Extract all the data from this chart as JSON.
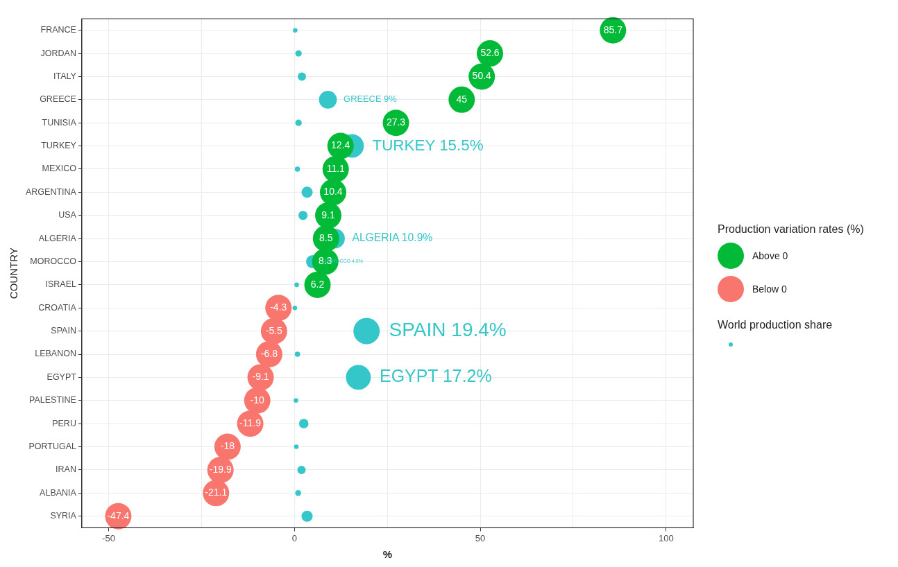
{
  "chart_data": {
    "type": "bubble",
    "orientation": "horizontal",
    "xlabel": "%",
    "ylabel": "COUNTRY",
    "legend_title": "Production variation rates (%)",
    "legend": "right",
    "grid": true,
    "categories": [
      "FRANCE",
      "JORDAN",
      "ITALY",
      "GREECE",
      "TUNISIA",
      "TURKEY",
      "MEXICO",
      "ARGENTINA",
      "USA",
      "ALGERIA",
      "MOROCCO",
      "ISRAEL",
      "CROATIA",
      "SPAIN",
      "LEBANON",
      "EGYPT",
      "PALESTINE",
      "PERU",
      "PORTUGAL",
      "IRAN",
      "ALBANIA",
      "SYRIA"
    ],
    "xlim": [
      -57.2,
      107.3
    ],
    "xticks": [
      -50,
      {
        "value": -25,
        "label": null
      },
      0,
      {
        "value": 25,
        "label": null
      },
      50,
      {
        "value": 75,
        "label": null
      },
      100
    ],
    "series": [
      {
        "name": "Above 0",
        "color": "#00ba38",
        "values": [
          85.7,
          52.6,
          50.4,
          45,
          27.3,
          12.4,
          11.1,
          10.4,
          9.1,
          8.5,
          8.3,
          6.2,
          null,
          null,
          null,
          null,
          null,
          null,
          null,
          null,
          null,
          null
        ],
        "value_labels": [
          "85.7",
          "52.6",
          "50.4",
          "45",
          "27.3",
          "12.4",
          "11.1",
          "10.4",
          "9.1",
          "8.5",
          "8.3",
          "6.2",
          null,
          null,
          null,
          null,
          null,
          null,
          null,
          null,
          null,
          null
        ]
      },
      {
        "name": "Below 0",
        "color": "#f8766d",
        "values": [
          null,
          null,
          null,
          null,
          null,
          null,
          null,
          null,
          null,
          null,
          null,
          null,
          -4.3,
          -5.5,
          -6.8,
          -9.1,
          -10,
          -11.9,
          -18,
          -19.9,
          -21.1,
          -47.4
        ],
        "value_labels": [
          null,
          null,
          null,
          null,
          null,
          null,
          null,
          null,
          null,
          null,
          null,
          null,
          "-4.3",
          "-5.5",
          "-6.8",
          "-9.1",
          "-10",
          "-11.9",
          "-18",
          "-19.9",
          "-21.1",
          "-47.4"
        ]
      },
      {
        "name": "World production share",
        "color": "#35c6c9",
        "values": [
          0.2,
          1.1,
          2,
          9,
          1.1,
          15.5,
          0.8,
          3.4,
          2.3,
          10.9,
          4.9,
          0.6,
          0.1,
          19.4,
          0.8,
          17.2,
          0.4,
          2.5,
          0.5,
          1.9,
          1,
          3.4
        ],
        "sizes": [
          0.03,
          0.06,
          0.1,
          0.46,
          0.06,
          0.8,
          0.04,
          0.18,
          0.12,
          0.56,
          0.25,
          0.03,
          0.03,
          1,
          0.04,
          0.89,
          0.03,
          0.13,
          0.03,
          0.1,
          0.05,
          0.18
        ],
        "value_labels": [
          null,
          null,
          null,
          "GREECE 9%",
          null,
          "TURKEY 15.5%",
          null,
          null,
          null,
          "ALGERIA 10.9%",
          "MOROCCO 4.9%",
          null,
          null,
          "SPAIN 19.4%",
          null,
          "EGYPT 17.2%",
          null,
          null,
          null,
          null,
          null,
          null
        ]
      }
    ]
  }
}
